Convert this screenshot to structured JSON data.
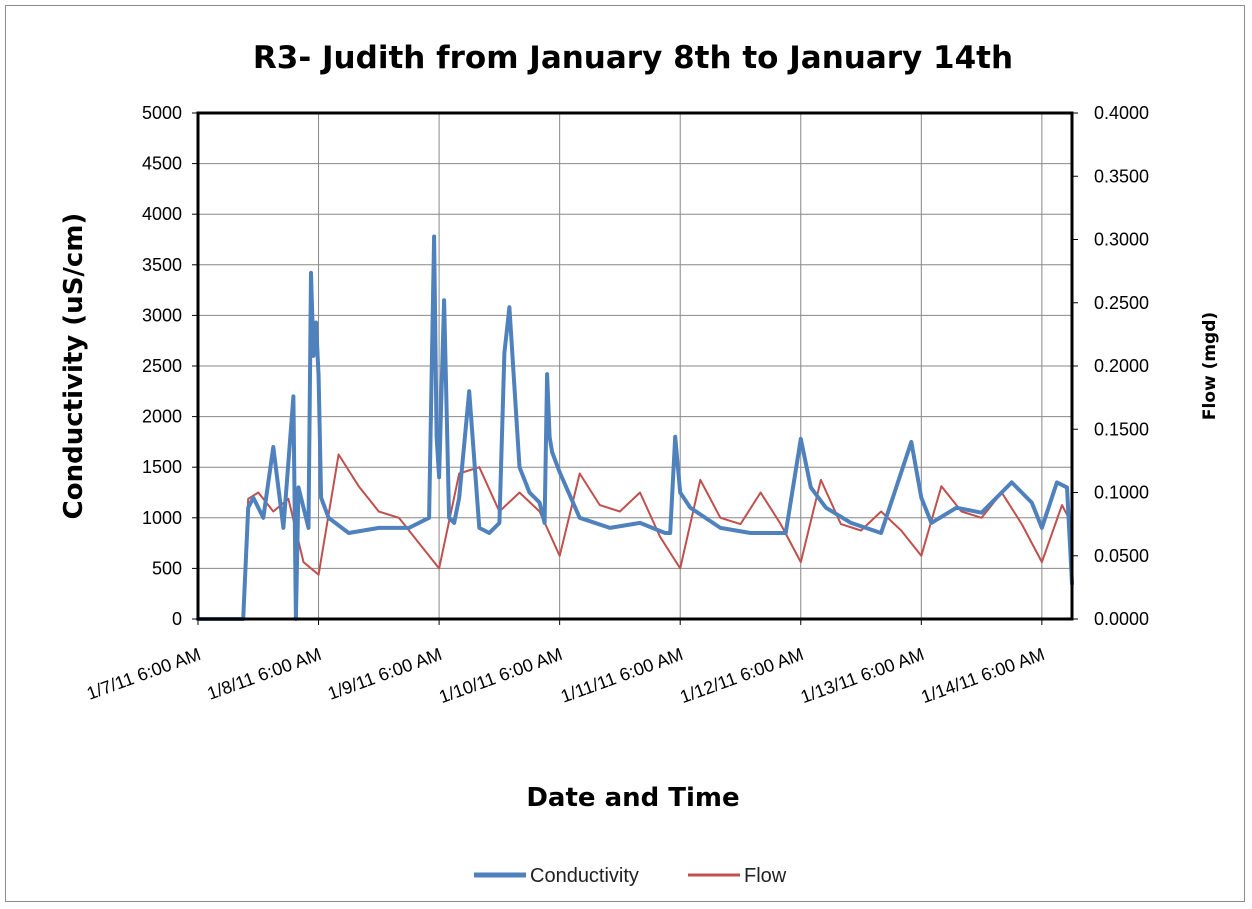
{
  "chart_data": {
    "type": "line",
    "title": "R3- Judith from January 8th to January 14th",
    "xlabel": "Date and Time",
    "ylabel": "Conductivity (uS/cm)",
    "y2label": "Flow (mgd)",
    "xlim": [
      "1/7/11 6:00 AM",
      "1/14/11 12:00 PM"
    ],
    "ylim": [
      0,
      5000
    ],
    "y2lim": [
      0,
      0.4
    ],
    "x_ticks": [
      "1/7/11 6:00 AM",
      "1/8/11 6:00 AM",
      "1/9/11 6:00 AM",
      "1/10/11 6:00 AM",
      "1/11/11 6:00 AM",
      "1/12/11 6:00 AM",
      "1/13/11 6:00 AM",
      "1/14/11 6:00 AM"
    ],
    "y_ticks": [
      "0",
      "500",
      "1000",
      "1500",
      "2000",
      "2500",
      "3000",
      "3500",
      "4000",
      "4500",
      "5000"
    ],
    "y2_ticks": [
      "0.0000",
      "0.0500",
      "0.1000",
      "0.1500",
      "0.2000",
      "0.2500",
      "0.3000",
      "0.3500",
      "0.4000"
    ],
    "grid": true,
    "legend_position": "bottom",
    "series": [
      {
        "name": "Conductivity",
        "axis": "left",
        "color": "#4F81BD",
        "x": [
          "1/7/11 6:00 AM",
          "1/7/11 3:00 PM",
          "1/7/11 4:00 PM",
          "1/7/11 5:00 PM",
          "1/7/11 7:00 PM",
          "1/7/11 9:00 PM",
          "1/7/11 11:00 PM",
          "1/8/11 1:00 AM",
          "1/8/11 1:30 AM",
          "1/8/11 2:00 AM",
          "1/8/11 3:00 AM",
          "1/8/11 4:00 AM",
          "1/8/11 4:30 AM",
          "1/8/11 5:00 AM",
          "1/8/11 5:30 AM",
          "1/8/11 6:00 AM",
          "1/8/11 6:30 AM",
          "1/8/11 8:00 AM",
          "1/8/11 12:00 PM",
          "1/8/11 6:00 PM",
          "1/9/11 12:00 AM",
          "1/9/11 4:00 AM",
          "1/9/11 5:00 AM",
          "1/9/11 5:30 AM",
          "1/9/11 6:00 AM",
          "1/9/11 7:00 AM",
          "1/9/11 8:00 AM",
          "1/9/11 9:00 AM",
          "1/9/11 10:00 AM",
          "1/9/11 12:00 PM",
          "1/9/11 2:00 PM",
          "1/9/11 4:00 PM",
          "1/9/11 6:00 PM",
          "1/9/11 7:00 PM",
          "1/9/11 8:00 PM",
          "1/9/11 10:00 PM",
          "1/10/11 12:00 AM",
          "1/10/11 2:00 AM",
          "1/10/11 3:00 AM",
          "1/10/11 3:30 AM",
          "1/10/11 4:00 AM",
          "1/10/11 4:30 AM",
          "1/10/11 6:00 AM",
          "1/10/11 10:00 AM",
          "1/10/11 4:00 PM",
          "1/10/11 10:00 PM",
          "1/11/11 3:00 AM",
          "1/11/11 4:00 AM",
          "1/11/11 5:00 AM",
          "1/11/11 6:00 AM",
          "1/11/11 8:00 AM",
          "1/11/11 2:00 PM",
          "1/11/11 8:00 PM",
          "1/12/11 3:00 AM",
          "1/12/11 6:00 AM",
          "1/12/11 8:00 AM",
          "1/12/11 11:00 AM",
          "1/12/11 4:00 PM",
          "1/12/11 10:00 PM",
          "1/13/11 4:00 AM",
          "1/13/11 6:00 AM",
          "1/13/11 8:00 AM",
          "1/13/11 1:00 PM",
          "1/13/11 6:00 PM",
          "1/14/11 12:00 AM",
          "1/14/11 4:00 AM",
          "1/14/11 6:00 AM",
          "1/14/11 9:00 AM",
          "1/14/11 11:00 AM",
          "1/14/11 12:00 PM"
        ],
        "y": [
          0,
          0,
          1100,
          1200,
          1000,
          1700,
          900,
          2200,
          0,
          1300,
          1100,
          900,
          3420,
          2600,
          2930,
          2400,
          1200,
          1000,
          850,
          900,
          900,
          1000,
          3780,
          1800,
          1400,
          3150,
          1000,
          950,
          1200,
          2250,
          900,
          850,
          950,
          2630,
          3080,
          1500,
          1250,
          1150,
          950,
          2420,
          1800,
          1650,
          1450,
          1000,
          900,
          950,
          850,
          850,
          1800,
          1250,
          1100,
          900,
          850,
          850,
          1780,
          1300,
          1100,
          950,
          850,
          1750,
          1200,
          950,
          1100,
          1050,
          1350,
          1150,
          900,
          1350,
          1300,
          350
        ]
      },
      {
        "name": "Flow",
        "axis": "right",
        "color": "#C0504D",
        "x": [
          "1/7/11 6:00 AM",
          "1/7/11 3:00 PM",
          "1/7/11 4:00 PM",
          "1/7/11 6:00 PM",
          "1/7/11 9:00 PM",
          "1/8/11 12:00 AM",
          "1/8/11 3:00 AM",
          "1/8/11 6:00 AM",
          "1/8/11 10:00 AM",
          "1/8/11 2:00 PM",
          "1/8/11 6:00 PM",
          "1/8/11 10:00 PM",
          "1/9/11 2:00 AM",
          "1/9/11 6:00 AM",
          "1/9/11 10:00 AM",
          "1/9/11 2:00 PM",
          "1/9/11 6:00 PM",
          "1/9/11 10:00 PM",
          "1/10/11 2:00 AM",
          "1/10/11 6:00 AM",
          "1/10/11 10:00 AM",
          "1/10/11 2:00 PM",
          "1/10/11 6:00 PM",
          "1/10/11 10:00 PM",
          "1/11/11 2:00 AM",
          "1/11/11 6:00 AM",
          "1/11/11 10:00 AM",
          "1/11/11 2:00 PM",
          "1/11/11 6:00 PM",
          "1/11/11 10:00 PM",
          "1/12/11 2:00 AM",
          "1/12/11 6:00 AM",
          "1/12/11 10:00 AM",
          "1/12/11 2:00 PM",
          "1/12/11 6:00 PM",
          "1/12/11 10:00 PM",
          "1/13/11 2:00 AM",
          "1/13/11 6:00 AM",
          "1/13/11 10:00 AM",
          "1/13/11 2:00 PM",
          "1/13/11 6:00 PM",
          "1/13/11 10:00 PM",
          "1/14/11 2:00 AM",
          "1/14/11 6:00 AM",
          "1/14/11 10:00 AM",
          "1/14/11 12:00 PM"
        ],
        "y": [
          0,
          0,
          0.095,
          0.1,
          0.085,
          0.095,
          0.045,
          0.035,
          0.13,
          0.105,
          0.085,
          0.08,
          0.06,
          0.04,
          0.115,
          0.12,
          0.085,
          0.1,
          0.085,
          0.05,
          0.115,
          0.09,
          0.085,
          0.1,
          0.065,
          0.04,
          0.11,
          0.08,
          0.075,
          0.1,
          0.075,
          0.045,
          0.11,
          0.075,
          0.07,
          0.085,
          0.07,
          0.05,
          0.105,
          0.085,
          0.08,
          0.1,
          0.075,
          0.045,
          0.09,
          0.075
        ]
      }
    ]
  }
}
